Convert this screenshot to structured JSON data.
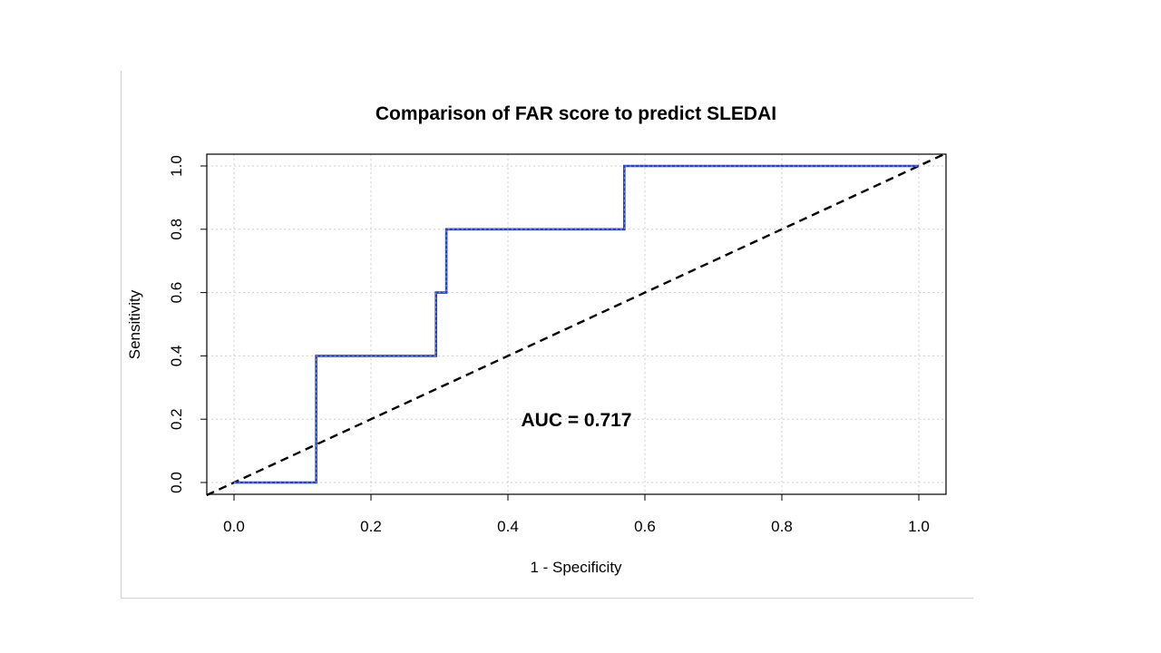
{
  "chart_data": {
    "type": "line",
    "title": "Comparison of FAR score to predict SLEDAI",
    "xlabel": "1 - Specificity",
    "ylabel": "Sensitivity",
    "xlim": [
      0,
      1
    ],
    "ylim": [
      0,
      1
    ],
    "x_ticks": [
      "0.0",
      "0.2",
      "0.4",
      "0.6",
      "0.8",
      "1.0"
    ],
    "y_ticks": [
      "0.0",
      "0.2",
      "0.4",
      "0.6",
      "0.8",
      "1.0"
    ],
    "grid": true,
    "series": [
      {
        "color": "#1f3fe0",
        "style": "solid",
        "x": [
          0.0,
          0.12,
          0.12,
          0.295,
          0.295,
          0.31,
          0.31,
          0.57,
          0.57,
          1.0
        ],
        "y": [
          0.0,
          0.0,
          0.4,
          0.4,
          0.6,
          0.6,
          0.8,
          0.8,
          1.0,
          1.0
        ]
      },
      {
        "color": "#000000",
        "style": "dashed",
        "x": [
          0.0,
          1.0
        ],
        "y": [
          0.0,
          1.0
        ]
      }
    ],
    "annotations": [
      {
        "text": "AUC = 0.717",
        "x": 0.5,
        "y": 0.2
      }
    ]
  }
}
